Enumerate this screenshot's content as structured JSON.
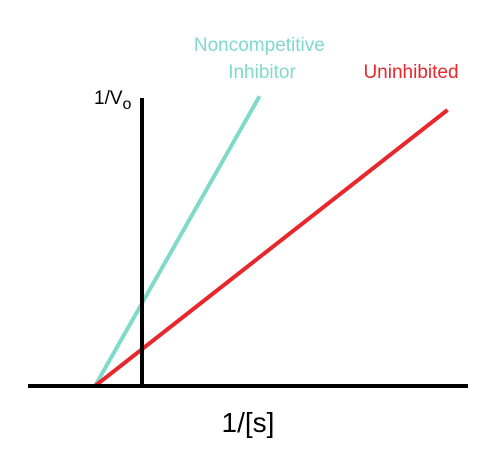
{
  "chart_data": {
    "type": "line",
    "xlabel": "1/[s]",
    "ylabel": "1/V",
    "ylabel_subscript": "o",
    "xlim": [
      -1,
      6.5
    ],
    "ylim": [
      0,
      3
    ],
    "grid": false,
    "x_intercept": -1,
    "series": [
      {
        "name": "Noncompetitive Inhibitor",
        "label_lines": [
          "Noncompetitive",
          "Inhibitor"
        ],
        "color": "#7fd9cc",
        "slope": 0.9,
        "x": [
          -1,
          2.5
        ],
        "y": [
          0,
          3.15
        ]
      },
      {
        "name": "Uninhibited",
        "label_lines": [
          "Uninhibited"
        ],
        "color": "#e8262b",
        "slope": 0.4,
        "x": [
          -1,
          6.5
        ],
        "y": [
          0,
          3.0
        ]
      }
    ]
  }
}
